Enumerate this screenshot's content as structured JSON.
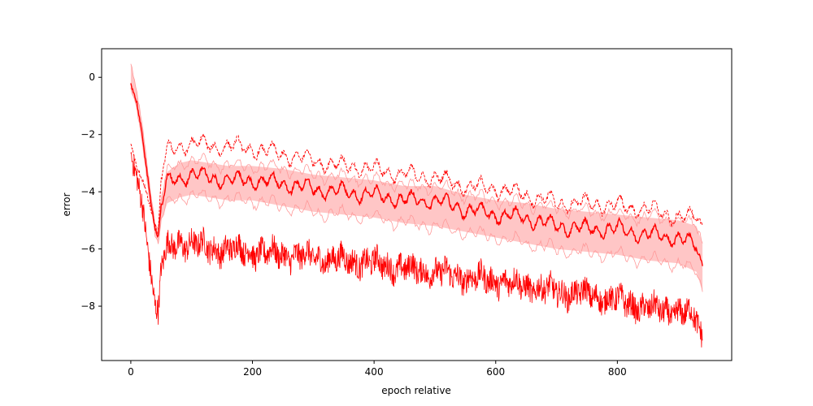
{
  "chart_data": {
    "type": "line",
    "title": "",
    "xlabel": "epoch relative",
    "ylabel": "error",
    "xlim": [
      -48,
      988
    ],
    "ylim": [
      -9.9,
      1.0
    ],
    "xticks": [
      0,
      200,
      400,
      600,
      800
    ],
    "yticks": [
      -8,
      -6,
      -4,
      -2,
      0
    ],
    "grid": false,
    "legend": "none",
    "colors": {
      "line": "#ff0000",
      "band": "#ffb3b3",
      "band_edge": "#ff9999"
    },
    "series": [
      {
        "role": "mean",
        "x": [
          0,
          10,
          20,
          30,
          40,
          45,
          50,
          60,
          80,
          100,
          130,
          160,
          200,
          250,
          300,
          350,
          400,
          450,
          500,
          550,
          600,
          650,
          700,
          750,
          800,
          850,
          900,
          930,
          940
        ],
        "values": [
          -0.2,
          -0.9,
          -2.2,
          -3.9,
          -5.3,
          -5.6,
          -4.5,
          -3.7,
          -3.5,
          -3.4,
          -3.5,
          -3.6,
          -3.6,
          -3.7,
          -3.9,
          -4.0,
          -4.1,
          -4.3,
          -4.3,
          -4.6,
          -4.8,
          -4.9,
          -5.2,
          -5.3,
          -5.3,
          -5.5,
          -5.6,
          -5.9,
          -6.6
        ]
      },
      {
        "role": "band-lower",
        "x": [
          0,
          10,
          20,
          30,
          40,
          45,
          50,
          60,
          80,
          100,
          130,
          160,
          200,
          250,
          300,
          350,
          400,
          450,
          500,
          550,
          600,
          650,
          700,
          750,
          800,
          850,
          900,
          930,
          940
        ],
        "values": [
          -0.4,
          -1.1,
          -2.5,
          -4.1,
          -5.5,
          -5.8,
          -5.0,
          -4.4,
          -4.2,
          -4.1,
          -4.2,
          -4.3,
          -4.3,
          -4.5,
          -4.7,
          -4.8,
          -4.9,
          -5.1,
          -5.2,
          -5.4,
          -5.6,
          -5.8,
          -6.0,
          -6.1,
          -6.2,
          -6.4,
          -6.5,
          -6.8,
          -7.5
        ]
      },
      {
        "role": "band-upper",
        "x": [
          0,
          10,
          20,
          30,
          40,
          45,
          50,
          60,
          80,
          100,
          130,
          160,
          200,
          250,
          300,
          350,
          400,
          450,
          500,
          550,
          600,
          650,
          700,
          750,
          800,
          850,
          900,
          930,
          940
        ],
        "values": [
          0.5,
          -0.5,
          -1.9,
          -3.6,
          -5.1,
          -5.3,
          -4.2,
          -3.3,
          -3.0,
          -2.9,
          -3.0,
          -3.1,
          -3.1,
          -3.2,
          -3.4,
          -3.5,
          -3.6,
          -3.8,
          -3.8,
          -4.1,
          -4.3,
          -4.4,
          -4.6,
          -4.7,
          -4.8,
          -4.9,
          -5.0,
          -5.2,
          -5.8
        ]
      },
      {
        "role": "upper-dashed",
        "x": [
          0,
          10,
          20,
          30,
          40,
          45,
          50,
          60,
          80,
          100,
          130,
          160,
          200,
          250,
          300,
          350,
          400,
          450,
          500,
          550,
          600,
          650,
          700,
          750,
          800,
          850,
          900,
          930,
          940
        ],
        "values": [
          -2.3,
          -3.2,
          -3.6,
          -4.4,
          -5.2,
          -5.5,
          -3.5,
          -2.6,
          -2.4,
          -2.3,
          -2.4,
          -2.4,
          -2.5,
          -2.7,
          -2.9,
          -3.1,
          -3.2,
          -3.4,
          -3.5,
          -3.8,
          -3.9,
          -4.1,
          -4.4,
          -4.4,
          -4.5,
          -4.6,
          -4.9,
          -4.9,
          -5.2
        ]
      },
      {
        "role": "minimum",
        "x": [
          0,
          10,
          20,
          30,
          40,
          45,
          50,
          60,
          80,
          100,
          130,
          160,
          200,
          250,
          300,
          350,
          400,
          450,
          500,
          550,
          600,
          650,
          700,
          750,
          800,
          850,
          900,
          930,
          940
        ],
        "values": [
          -2.7,
          -3.5,
          -4.6,
          -6.4,
          -8.0,
          -8.2,
          -6.6,
          -6.0,
          -5.8,
          -5.8,
          -6.0,
          -6.0,
          -6.1,
          -6.2,
          -6.3,
          -6.4,
          -6.5,
          -6.7,
          -6.8,
          -7.0,
          -7.1,
          -7.3,
          -7.5,
          -7.6,
          -7.8,
          -8.1,
          -8.2,
          -8.4,
          -9.2
        ]
      }
    ]
  }
}
